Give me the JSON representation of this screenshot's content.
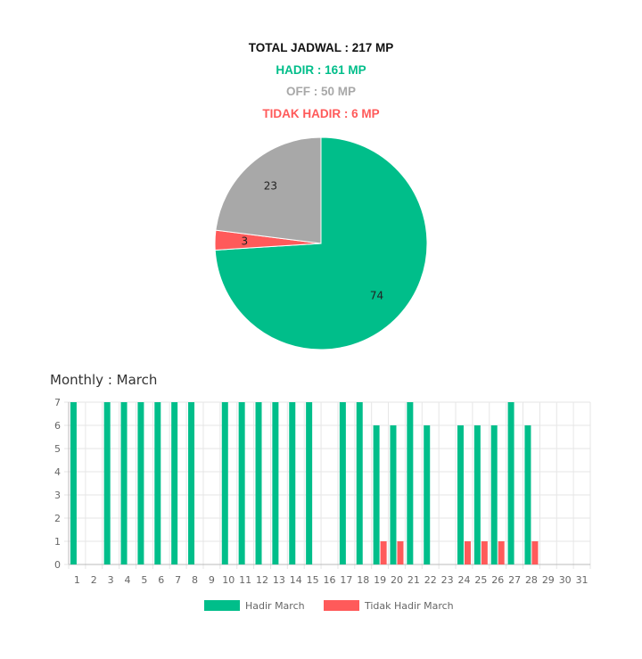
{
  "summary": {
    "total": "TOTAL JADWAL : 217 MP",
    "hadir": "HADIR : 161 MP",
    "off": "OFF : 50 MP",
    "tidak_hadir": "TIDAK HADIR : 6 MP"
  },
  "colors": {
    "hadir": "#00be8a",
    "off": "#a8a8a8",
    "tidak_hadir": "#ff5a5a",
    "total": "#111111",
    "grid": "#e6e6e6"
  },
  "chart_data": [
    {
      "type": "pie",
      "labels": [
        "Hadir",
        "Tidak Hadir",
        "Off"
      ],
      "values": [
        74,
        3,
        23
      ],
      "data_labels": [
        "74",
        "3",
        "23"
      ],
      "colors": [
        "#00be8a",
        "#ff5a5a",
        "#a8a8a8"
      ]
    },
    {
      "type": "bar",
      "title": "Monthly : March",
      "categories": [
        "1",
        "2",
        "3",
        "4",
        "5",
        "6",
        "7",
        "8",
        "9",
        "10",
        "11",
        "12",
        "13",
        "14",
        "15",
        "16",
        "17",
        "18",
        "19",
        "20",
        "21",
        "22",
        "23",
        "24",
        "25",
        "26",
        "27",
        "28",
        "29",
        "30",
        "31"
      ],
      "series": [
        {
          "name": "Hadir March",
          "color": "#00be8a",
          "values": [
            7,
            0,
            7,
            7,
            7,
            7,
            7,
            7,
            0,
            7,
            7,
            7,
            7,
            7,
            7,
            0,
            7,
            7,
            6,
            6,
            7,
            6,
            0,
            6,
            6,
            6,
            7,
            6,
            0,
            0,
            0
          ]
        },
        {
          "name": "Tidak Hadir March",
          "color": "#ff5a5a",
          "values": [
            0,
            0,
            0,
            0,
            0,
            0,
            0,
            0,
            0,
            0,
            0,
            0,
            0,
            0,
            0,
            0,
            0,
            0,
            1,
            1,
            0,
            0,
            0,
            1,
            1,
            1,
            0,
            1,
            0,
            0,
            0
          ]
        }
      ],
      "ylim": [
        0,
        7
      ],
      "yticks": [
        "0",
        "1",
        "2",
        "3",
        "4",
        "5",
        "6",
        "7"
      ],
      "grid": true,
      "legend": "bottom"
    }
  ]
}
